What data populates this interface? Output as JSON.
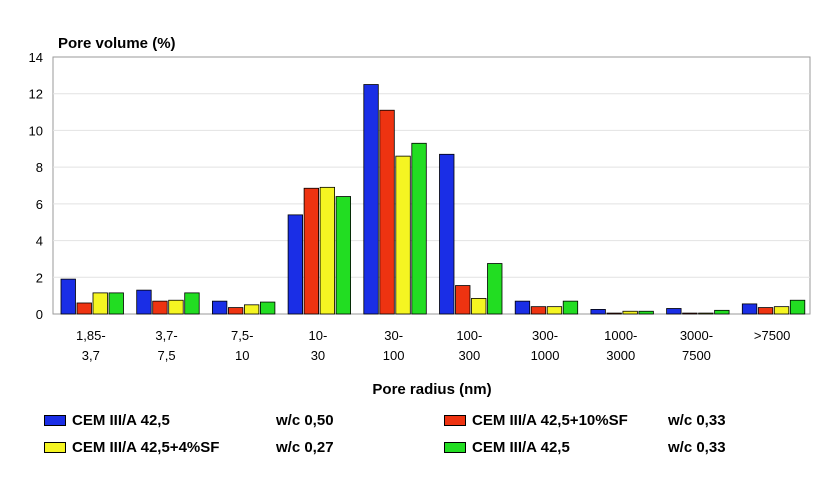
{
  "chart_data": {
    "type": "bar",
    "ylabel": "Pore volume (%)",
    "xlabel": "Pore radius (nm)",
    "ylim": [
      0,
      14
    ],
    "yticks": [
      0,
      2,
      4,
      6,
      8,
      10,
      12,
      14
    ],
    "grid": true,
    "categories": [
      [
        "1,85-",
        "3,7"
      ],
      [
        "3,7-",
        "7,5"
      ],
      [
        "7,5-",
        "10"
      ],
      [
        "10-",
        "30"
      ],
      [
        "30-",
        "100"
      ],
      [
        "100-",
        "300"
      ],
      [
        "300-",
        "1000"
      ],
      [
        "1000-",
        "3000"
      ],
      [
        "3000-",
        "7500"
      ],
      [
        ">7500"
      ]
    ],
    "series": [
      {
        "name": "CEM III/A 42,5",
        "wc": "w/c 0,50",
        "color": "#1a2ee6",
        "values": [
          1.9,
          1.3,
          0.7,
          5.4,
          12.5,
          8.7,
          0.7,
          0.25,
          0.3,
          0.55
        ]
      },
      {
        "name": "CEM III/A 42,5+10%SF",
        "wc": "w/c 0,33",
        "color": "#ee3311",
        "values": [
          0.6,
          0.7,
          0.35,
          6.85,
          11.1,
          1.55,
          0.4,
          0.05,
          0.05,
          0.35
        ]
      },
      {
        "name": "CEM III/A 42,5+4%SF",
        "wc": "w/c 0,27",
        "color": "#f5f522",
        "values": [
          1.15,
          0.75,
          0.5,
          6.9,
          8.6,
          0.85,
          0.4,
          0.15,
          0.05,
          0.4
        ]
      },
      {
        "name": "CEM III/A 42,5",
        "wc": "w/c 0,33",
        "color": "#22dd22",
        "values": [
          1.15,
          1.15,
          0.65,
          6.4,
          9.3,
          2.75,
          0.7,
          0.15,
          0.2,
          0.75
        ]
      }
    ]
  }
}
